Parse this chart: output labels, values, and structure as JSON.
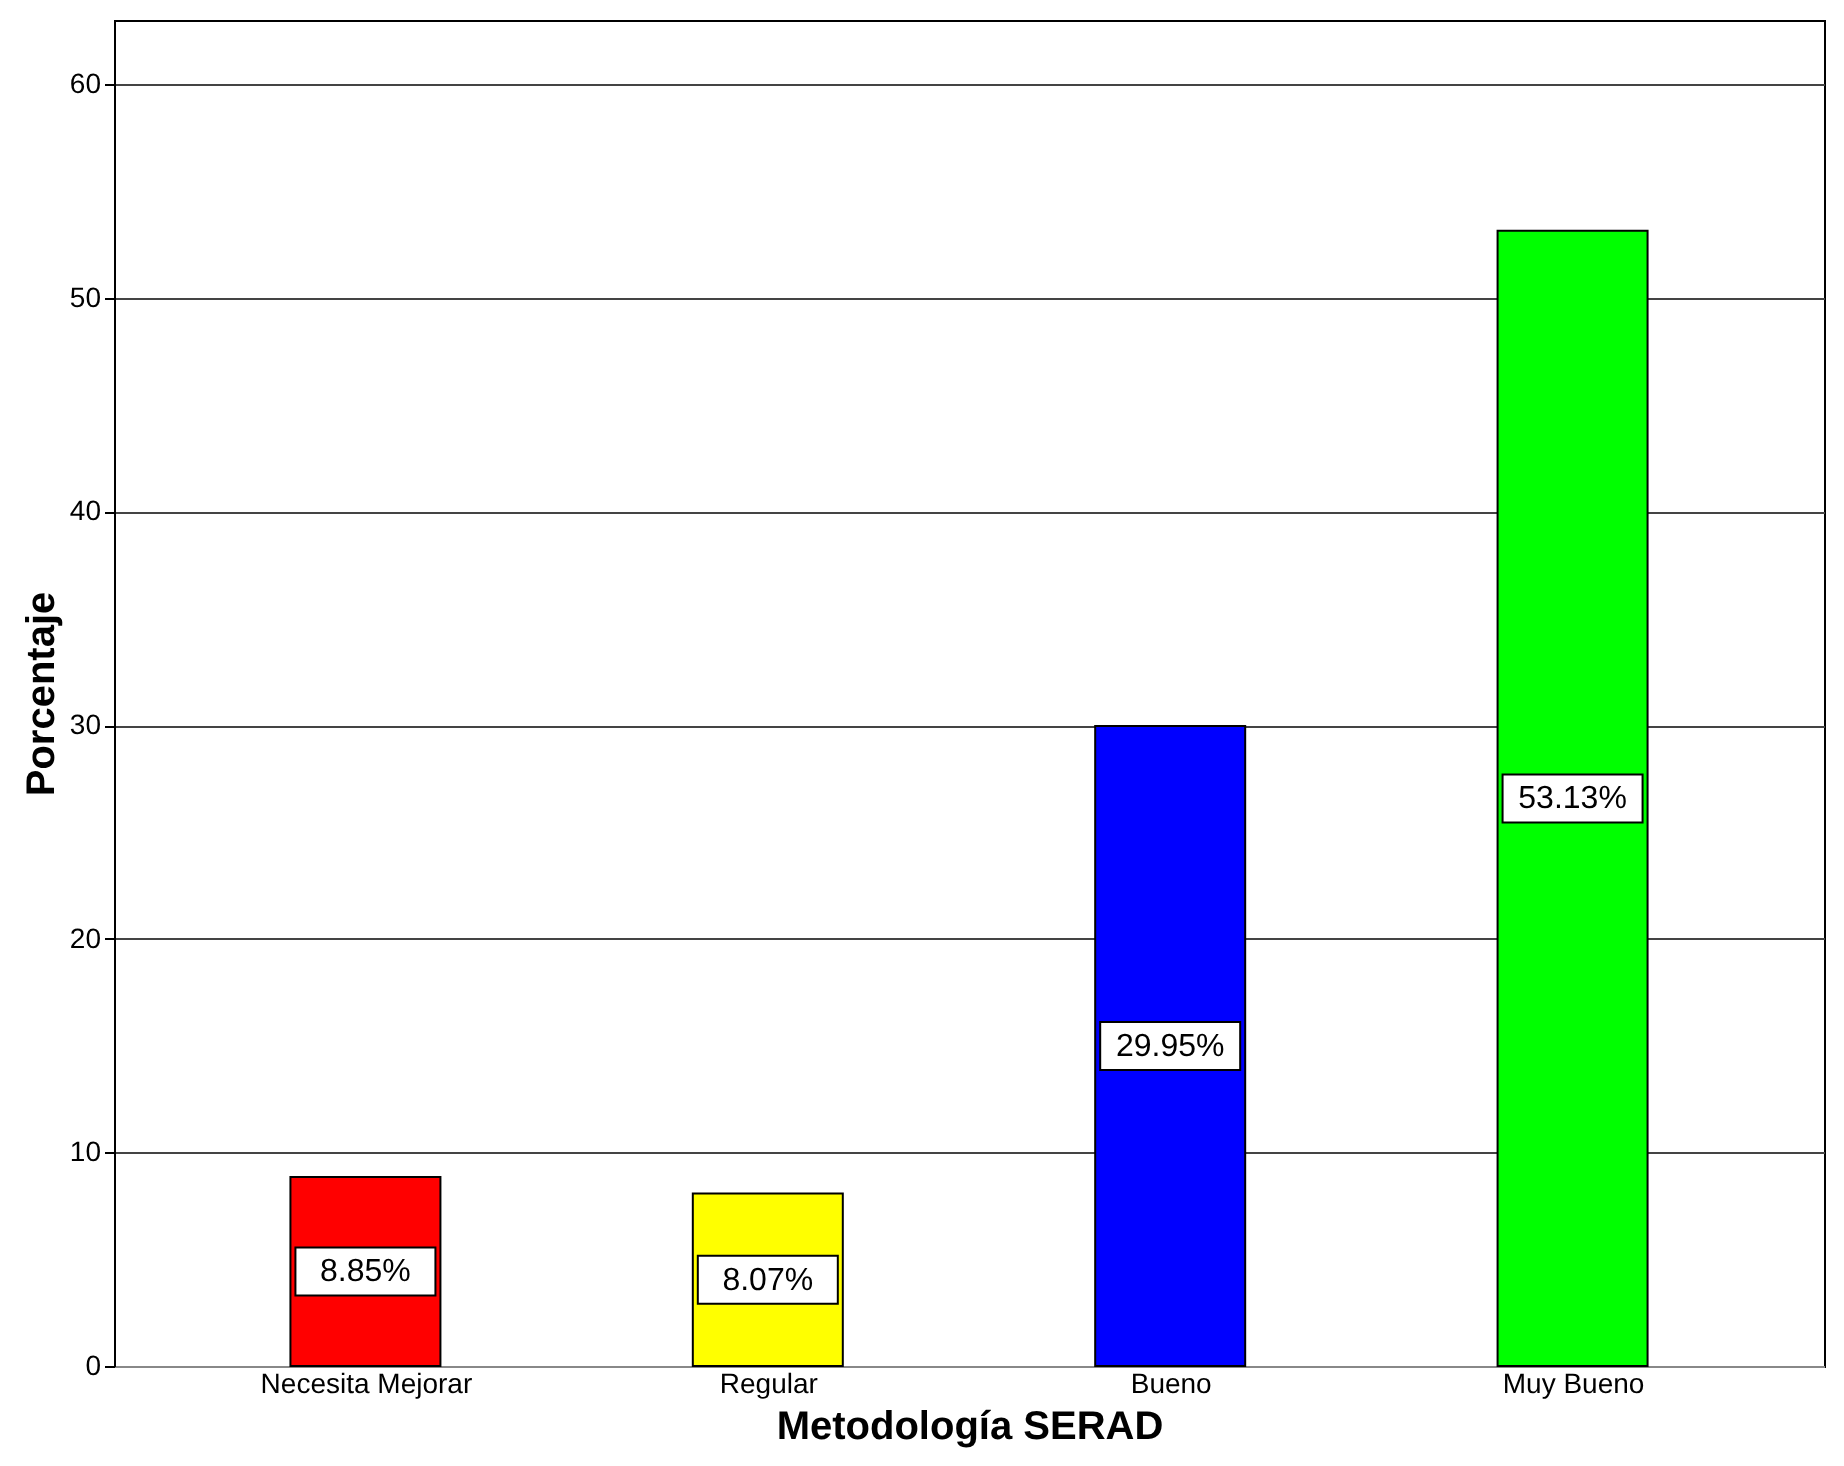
{
  "chart_data": {
    "type": "bar",
    "xlabel": "Metodología SERAD",
    "ylabel": "Porcentaje",
    "categories": [
      "Necesita Mejorar",
      "Regular",
      "Bueno",
      "Muy Bueno"
    ],
    "values": [
      8.85,
      8.07,
      29.95,
      53.13
    ],
    "colors": [
      "#ff0000",
      "#ffff00",
      "#0000ff",
      "#00ff00"
    ],
    "value_labels": [
      "8.85%",
      "8.07%",
      "29.95%",
      "53.13%"
    ],
    "ylim": [
      0,
      63
    ],
    "yticks": [
      0,
      10,
      20,
      30,
      40,
      50,
      60
    ],
    "grid": "y"
  }
}
